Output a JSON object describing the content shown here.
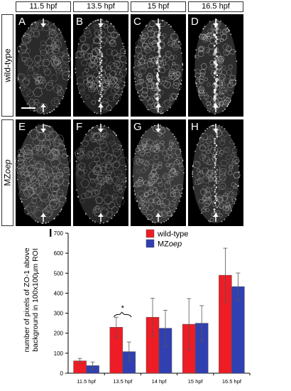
{
  "headers": [
    "11.5 hpf",
    "13.5 hpf",
    "15 hpf",
    "16.5 hpf"
  ],
  "row_labels": {
    "wildtype": "wild-type",
    "mutant_prefix": "MZ",
    "mutant_italic": "oep"
  },
  "panels_top": [
    "A",
    "B",
    "C",
    "D"
  ],
  "panels_bottom": [
    "E",
    "F",
    "G",
    "H"
  ],
  "figure_letter": "I",
  "chart_data": {
    "type": "bar",
    "categories": [
      "11.5 hpf",
      "13.5 hpf",
      "14 hpf",
      "15 hpf",
      "16.5 hpf"
    ],
    "series": [
      {
        "name": "wild-type",
        "color": "#ee1c25",
        "values": [
          62,
          230,
          280,
          245,
          490
        ],
        "errors": [
          12,
          50,
          95,
          128,
          135
        ]
      },
      {
        "name": "MZoep",
        "color": "#3040b0",
        "values": [
          38,
          108,
          225,
          250,
          433
        ],
        "errors": [
          18,
          48,
          90,
          88,
          68
        ]
      }
    ],
    "legend": [
      {
        "prefix": "wild-type",
        "italic": ""
      },
      {
        "prefix": "MZ",
        "italic": "oep"
      }
    ],
    "ylabel_lines": [
      "number of pixels of ZO-1 above",
      "background in 100x100µm ROI"
    ],
    "ylim": [
      0,
      700
    ],
    "yticks": [
      0,
      100,
      200,
      300,
      400,
      500,
      600,
      700
    ],
    "significance": {
      "category_index": 1,
      "symbol": "*"
    },
    "legend_position": "top-center"
  }
}
